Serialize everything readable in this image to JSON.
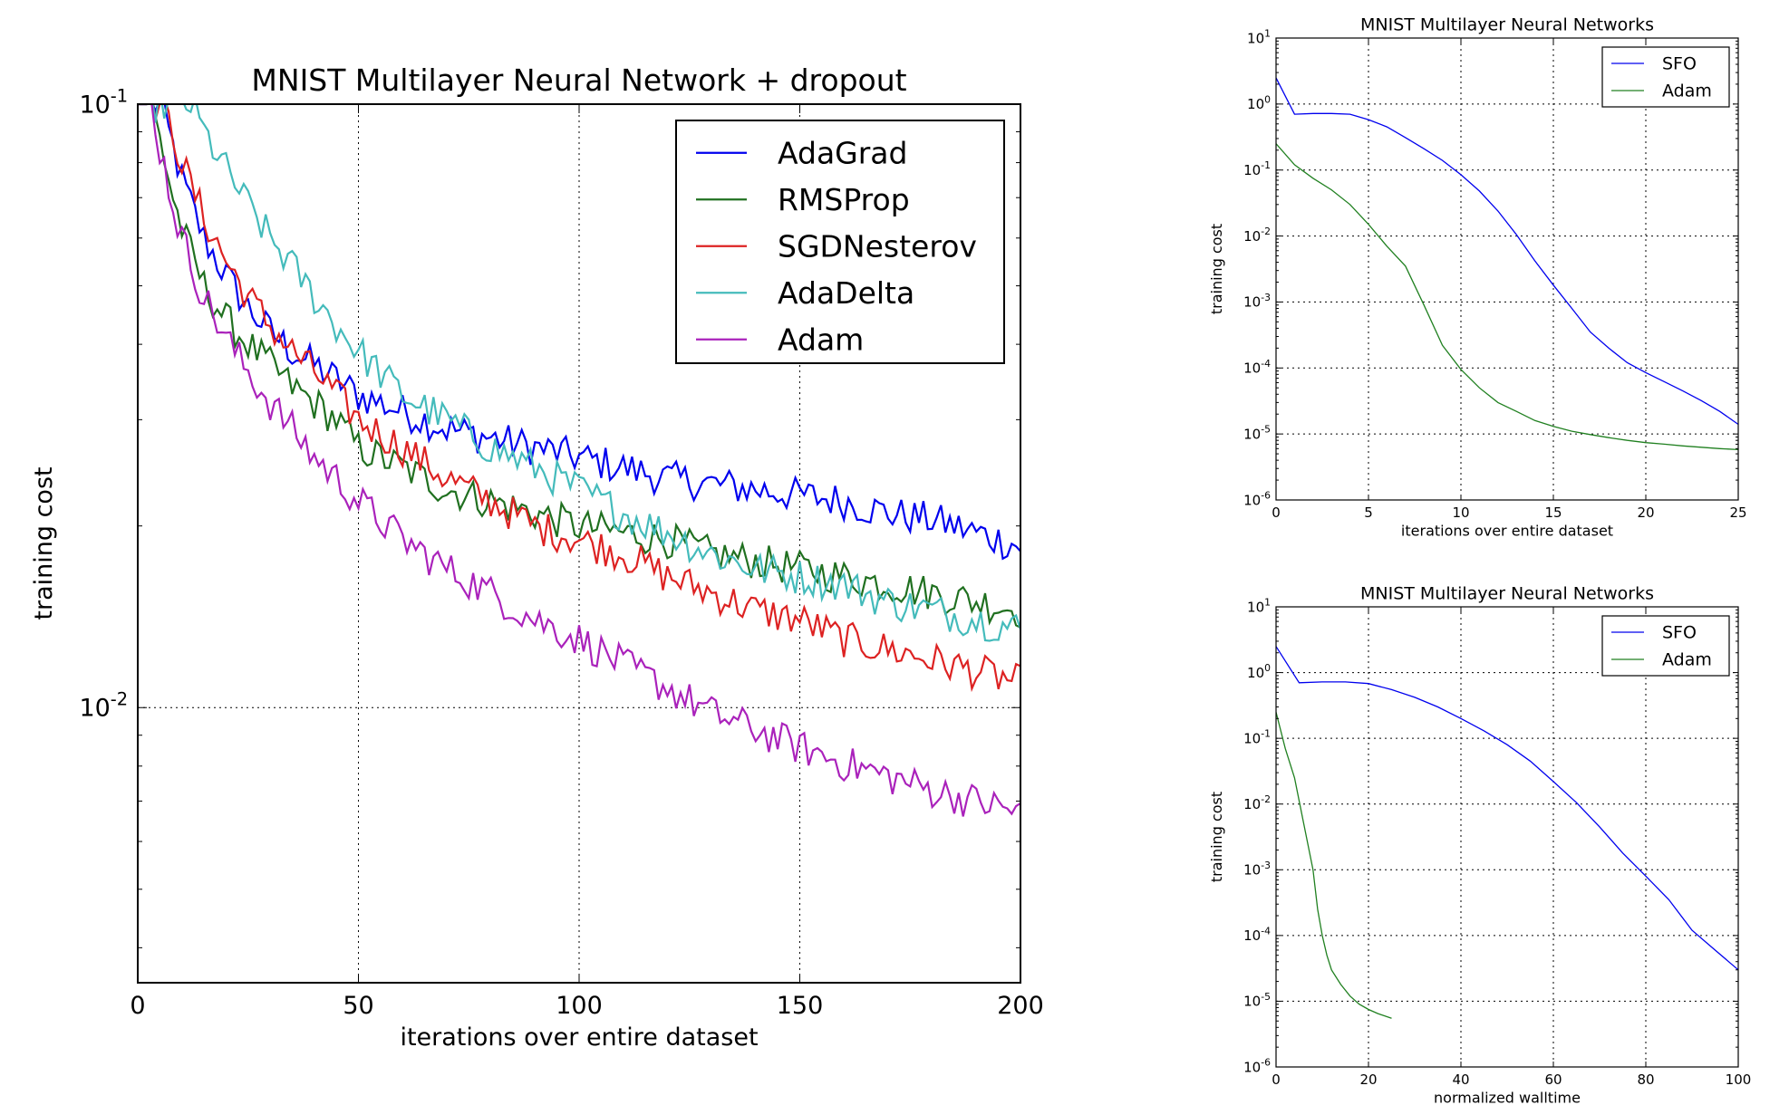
{
  "chart_data": [
    {
      "type": "line",
      "title": "MNIST Multilayer Neural Network + dropout",
      "xlabel": "iterations over entire dataset",
      "ylabel": "training cost",
      "xlim": [
        0,
        200
      ],
      "ylim": [
        0.0035,
        0.1
      ],
      "yscale": "log",
      "grid": true,
      "legend_position": "top-right",
      "xticks": [
        "0",
        "50",
        "100",
        "150",
        "200"
      ],
      "yticks": [
        {
          "base": "10",
          "exp": "-1"
        },
        {
          "base": "10",
          "exp": "-2"
        }
      ],
      "series": [
        {
          "name": "AdaGrad",
          "color": "#0000ee",
          "x": [
            0,
            3,
            5,
            8,
            10,
            15,
            20,
            25,
            30,
            35,
            40,
            45,
            50,
            60,
            70,
            80,
            90,
            100,
            110,
            120,
            130,
            140,
            150,
            160,
            170,
            180,
            190,
            200
          ],
          "y": [
            0.1,
            0.1,
            0.1,
            0.085,
            0.075,
            0.06,
            0.052,
            0.046,
            0.042,
            0.039,
            0.037,
            0.035,
            0.033,
            0.031,
            0.029,
            0.028,
            0.027,
            0.026,
            0.025,
            0.024,
            0.0235,
            0.023,
            0.0225,
            0.022,
            0.021,
            0.0205,
            0.0195,
            0.0185
          ]
        },
        {
          "name": "RMSProp",
          "color": "#207020",
          "x": [
            0,
            3,
            5,
            8,
            10,
            15,
            20,
            25,
            30,
            35,
            40,
            45,
            50,
            60,
            70,
            80,
            90,
            100,
            110,
            120,
            130,
            140,
            150,
            160,
            170,
            180,
            190,
            200
          ],
          "y": [
            0.1,
            0.1,
            0.088,
            0.07,
            0.062,
            0.05,
            0.044,
            0.04,
            0.037,
            0.034,
            0.032,
            0.03,
            0.027,
            0.025,
            0.023,
            0.022,
            0.021,
            0.02,
            0.0195,
            0.019,
            0.018,
            0.0175,
            0.017,
            0.0165,
            0.016,
            0.0155,
            0.015,
            0.0145
          ]
        },
        {
          "name": "SGDNesterov",
          "color": "#dd2222",
          "x": [
            0,
            3,
            5,
            8,
            10,
            15,
            20,
            25,
            30,
            35,
            40,
            45,
            50,
            60,
            70,
            80,
            90,
            100,
            110,
            120,
            130,
            140,
            150,
            160,
            170,
            180,
            190,
            200
          ],
          "y": [
            0.1,
            0.1,
            0.1,
            0.09,
            0.08,
            0.065,
            0.055,
            0.048,
            0.043,
            0.039,
            0.036,
            0.033,
            0.03,
            0.027,
            0.024,
            0.022,
            0.02,
            0.019,
            0.018,
            0.0165,
            0.0155,
            0.0145,
            0.014,
            0.013,
            0.0125,
            0.012,
            0.0115,
            0.011
          ]
        },
        {
          "name": "AdaDelta",
          "color": "#44bbbb",
          "x": [
            0,
            5,
            8,
            10,
            12,
            15,
            20,
            25,
            30,
            35,
            40,
            45,
            50,
            60,
            70,
            80,
            90,
            100,
            110,
            120,
            130,
            140,
            150,
            160,
            170,
            180,
            190,
            200
          ],
          "y": [
            0.1,
            0.1,
            0.1,
            0.1,
            0.1,
            0.09,
            0.078,
            0.068,
            0.06,
            0.054,
            0.048,
            0.043,
            0.039,
            0.033,
            0.03,
            0.027,
            0.025,
            0.023,
            0.021,
            0.0195,
            0.018,
            0.017,
            0.0165,
            0.016,
            0.015,
            0.0145,
            0.014,
            0.0135
          ]
        },
        {
          "name": "Adam",
          "color": "#aa22bb",
          "x": [
            0,
            3,
            5,
            8,
            10,
            15,
            20,
            25,
            30,
            35,
            40,
            45,
            50,
            60,
            70,
            80,
            90,
            100,
            110,
            120,
            130,
            140,
            150,
            160,
            170,
            180,
            190,
            200
          ],
          "y": [
            0.1,
            0.1,
            0.085,
            0.068,
            0.06,
            0.048,
            0.041,
            0.036,
            0.032,
            0.029,
            0.026,
            0.024,
            0.022,
            0.019,
            0.017,
            0.0155,
            0.014,
            0.013,
            0.0118,
            0.0108,
            0.0098,
            0.0092,
            0.0086,
            0.0081,
            0.0077,
            0.0073,
            0.007,
            0.0067
          ]
        }
      ]
    },
    {
      "type": "line",
      "title": "MNIST Multilayer Neural Networks",
      "xlabel": "iterations over entire dataset",
      "ylabel": "training cost",
      "xlim": [
        0,
        25
      ],
      "ylim": [
        1e-06,
        10
      ],
      "yscale": "log",
      "grid": true,
      "legend_position": "top-right",
      "xticks": [
        "0",
        "5",
        "10",
        "15",
        "20",
        "25"
      ],
      "yticks": [
        {
          "base": "10",
          "exp": "1"
        },
        {
          "base": "10",
          "exp": "0"
        },
        {
          "base": "10",
          "exp": "-1"
        },
        {
          "base": "10",
          "exp": "-2"
        },
        {
          "base": "10",
          "exp": "-3"
        },
        {
          "base": "10",
          "exp": "-4"
        },
        {
          "base": "10",
          "exp": "-5"
        },
        {
          "base": "10",
          "exp": "-6"
        }
      ],
      "series": [
        {
          "name": "SFO",
          "color": "#0000ee",
          "x": [
            0,
            1,
            2,
            3,
            4,
            5,
            6,
            7,
            8,
            9,
            10,
            11,
            12,
            13,
            14,
            15,
            16,
            17,
            18,
            19,
            20,
            21,
            22,
            23,
            24,
            25
          ],
          "y": [
            2.5,
            0.7,
            0.72,
            0.72,
            0.7,
            0.58,
            0.45,
            0.31,
            0.21,
            0.14,
            0.085,
            0.048,
            0.024,
            0.0105,
            0.0042,
            0.0018,
            0.0008,
            0.00035,
            0.0002,
            0.00012,
            8.5e-05,
            6.2e-05,
            4.5e-05,
            3.2e-05,
            2.2e-05,
            1.4e-05
          ]
        },
        {
          "name": "Adam",
          "color": "#208020",
          "x": [
            0,
            1,
            2,
            3,
            4,
            5,
            6,
            7,
            8,
            9,
            10,
            11,
            12,
            13,
            14,
            15,
            16,
            17,
            18,
            19,
            20,
            21,
            22,
            23,
            24,
            25
          ],
          "y": [
            0.25,
            0.12,
            0.075,
            0.05,
            0.03,
            0.015,
            0.007,
            0.0035,
            0.0009,
            0.00022,
            9.5e-05,
            5e-05,
            3e-05,
            2.2e-05,
            1.6e-05,
            1.3e-05,
            1.1e-05,
            9.8e-06,
            8.8e-06,
            8e-06,
            7.4e-06,
            7e-06,
            6.6e-06,
            6.3e-06,
            6e-06,
            5.8e-06
          ]
        }
      ]
    },
    {
      "type": "line",
      "title": "MNIST Multilayer Neural Networks",
      "xlabel": "normalized walltime",
      "ylabel": "training cost",
      "xlim": [
        0,
        100
      ],
      "ylim": [
        1e-06,
        10
      ],
      "yscale": "log",
      "grid": true,
      "legend_position": "top-right",
      "xticks": [
        "0",
        "20",
        "40",
        "60",
        "80",
        "100"
      ],
      "yticks": [
        {
          "base": "10",
          "exp": "1"
        },
        {
          "base": "10",
          "exp": "0"
        },
        {
          "base": "10",
          "exp": "-1"
        },
        {
          "base": "10",
          "exp": "-2"
        },
        {
          "base": "10",
          "exp": "-3"
        },
        {
          "base": "10",
          "exp": "-4"
        },
        {
          "base": "10",
          "exp": "-5"
        },
        {
          "base": "10",
          "exp": "-6"
        }
      ],
      "series": [
        {
          "name": "SFO",
          "color": "#0000ee",
          "x": [
            0,
            5,
            10,
            15,
            20,
            25,
            30,
            35,
            40,
            45,
            50,
            55,
            60,
            65,
            70,
            75,
            80,
            85,
            90,
            95,
            100
          ],
          "y": [
            2.5,
            0.7,
            0.72,
            0.72,
            0.68,
            0.55,
            0.42,
            0.3,
            0.2,
            0.13,
            0.08,
            0.045,
            0.022,
            0.0105,
            0.0045,
            0.0018,
            0.0008,
            0.00035,
            0.00012,
            6e-05,
            3e-05
          ]
        },
        {
          "name": "Adam",
          "color": "#208020",
          "x": [
            0,
            2,
            4,
            6,
            8,
            9,
            10,
            11,
            12,
            14,
            16,
            18,
            20,
            22,
            25
          ],
          "y": [
            0.25,
            0.07,
            0.025,
            0.005,
            0.001,
            0.00025,
            0.0001,
            5e-05,
            3e-05,
            1.8e-05,
            1.2e-05,
            9e-06,
            7.5e-06,
            6.5e-06,
            5.5e-06
          ]
        }
      ]
    }
  ]
}
